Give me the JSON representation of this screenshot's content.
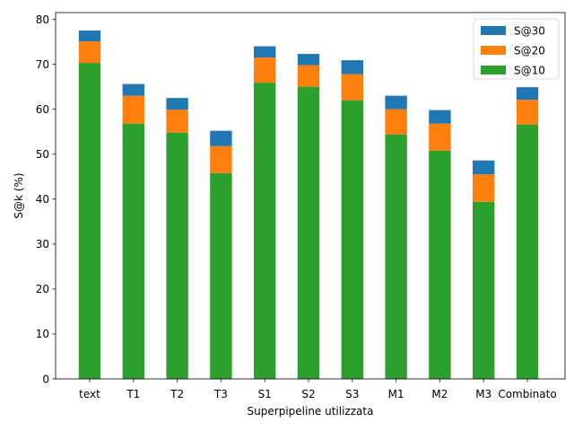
{
  "chart_data": {
    "type": "bar",
    "stacked": true,
    "categories": [
      "text",
      "T1",
      "T2",
      "T3",
      "S1",
      "S2",
      "S3",
      "M1",
      "M2",
      "M3",
      "Combinato"
    ],
    "series": [
      {
        "name": "S@10",
        "color": "#2ca02c",
        "values": [
          70.3,
          56.8,
          54.8,
          45.8,
          65.9,
          65.0,
          62.0,
          54.4,
          50.8,
          39.4,
          56.6
        ]
      },
      {
        "name": "S@20",
        "color": "#ff7f0e",
        "values": [
          4.8,
          6.2,
          5.1,
          6.0,
          5.6,
          4.8,
          5.8,
          5.6,
          6.0,
          6.1,
          5.5
        ]
      },
      {
        "name": "S@30",
        "color": "#1f77b4",
        "values": [
          2.4,
          2.6,
          2.6,
          3.4,
          2.5,
          2.5,
          3.1,
          3.0,
          3.0,
          3.1,
          2.8
        ]
      }
    ],
    "xlabel": "Superpipeline utilizzata",
    "ylabel": "S@k (%)",
    "ylim": [
      0,
      81.5
    ],
    "yticks": [
      0,
      10,
      20,
      30,
      40,
      50,
      60,
      70,
      80
    ],
    "legend": {
      "placement": "top-right",
      "order": [
        "S@30",
        "S@20",
        "S@10"
      ]
    },
    "grid": false
  }
}
